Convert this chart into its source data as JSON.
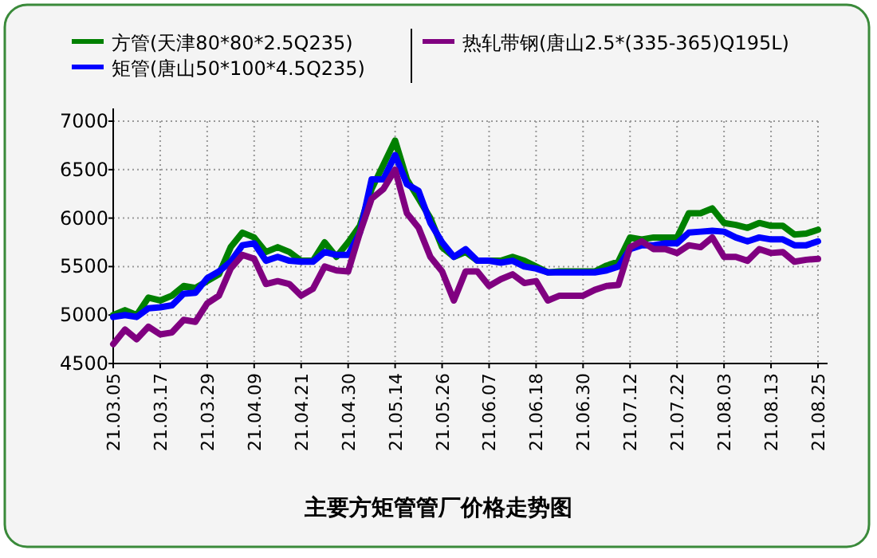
{
  "chart_data": {
    "type": "line",
    "title": "主要方矩管管厂价格走势图",
    "categories": [
      "21.03.05",
      null,
      null,
      null,
      "21.03.17",
      null,
      null,
      null,
      "21.03.29",
      null,
      null,
      null,
      "21.04.09",
      null,
      null,
      null,
      "21.04.21",
      null,
      null,
      null,
      "21.04.30",
      null,
      null,
      null,
      "21.05.14",
      null,
      null,
      null,
      "21.05.26",
      null,
      null,
      null,
      "21.06.07",
      null,
      null,
      null,
      "21.06.18",
      null,
      null,
      null,
      "21.06.30",
      null,
      null,
      null,
      "21.07.12",
      null,
      null,
      null,
      "21.07.22",
      null,
      null,
      null,
      "21.08.03",
      null,
      null,
      null,
      "21.08.13",
      null,
      null,
      null,
      "21.08.25"
    ],
    "series": [
      {
        "name": "方管(天津80*80*2.5Q235)",
        "color": "#008000",
        "values": [
          5000,
          5050,
          5000,
          5180,
          5150,
          5200,
          5300,
          5280,
          5350,
          5420,
          5700,
          5850,
          5800,
          5650,
          5700,
          5650,
          5560,
          5560,
          5750,
          5600,
          5750,
          5920,
          6300,
          6550,
          6800,
          6400,
          6200,
          6000,
          5700,
          5600,
          5650,
          5560,
          5560,
          5560,
          5600,
          5560,
          5500,
          5440,
          5450,
          5450,
          5450,
          5450,
          5510,
          5550,
          5800,
          5780,
          5800,
          5800,
          5800,
          6050,
          6050,
          6100,
          5950,
          5930,
          5900,
          5950,
          5920,
          5920,
          5830,
          5840,
          5880
        ]
      },
      {
        "name": "矩管(唐山50*100*4.5Q235)",
        "color": "#0000ff",
        "values": [
          4980,
          5000,
          4980,
          5070,
          5080,
          5100,
          5220,
          5230,
          5380,
          5450,
          5550,
          5720,
          5740,
          5560,
          5600,
          5560,
          5550,
          5550,
          5650,
          5620,
          5620,
          5850,
          6400,
          6400,
          6650,
          6350,
          6280,
          5950,
          5750,
          5600,
          5680,
          5560,
          5560,
          5540,
          5560,
          5500,
          5480,
          5440,
          5440,
          5440,
          5440,
          5440,
          5460,
          5500,
          5680,
          5720,
          5720,
          5740,
          5740,
          5850,
          5860,
          5870,
          5860,
          5800,
          5760,
          5800,
          5780,
          5780,
          5720,
          5720,
          5760
        ]
      },
      {
        "name": "热轧带钢(唐山2.5*(335-365)Q195L)",
        "color": "#800080",
        "values": [
          4700,
          4850,
          4750,
          4880,
          4800,
          4820,
          4950,
          4930,
          5120,
          5200,
          5480,
          5620,
          5580,
          5320,
          5350,
          5320,
          5200,
          5270,
          5500,
          5460,
          5450,
          5850,
          6200,
          6300,
          6500,
          6050,
          5900,
          5600,
          5450,
          5150,
          5450,
          5450,
          5300,
          5370,
          5420,
          5330,
          5350,
          5150,
          5200,
          5200,
          5200,
          5260,
          5300,
          5310,
          5700,
          5760,
          5680,
          5680,
          5640,
          5720,
          5700,
          5800,
          5600,
          5600,
          5560,
          5680,
          5640,
          5650,
          5550,
          5570,
          5580
        ]
      }
    ],
    "ylim": [
      4500,
      7000
    ],
    "yticks": [
      4500,
      5000,
      5500,
      6000,
      6500,
      7000
    ],
    "grid": true,
    "legend": "top"
  }
}
